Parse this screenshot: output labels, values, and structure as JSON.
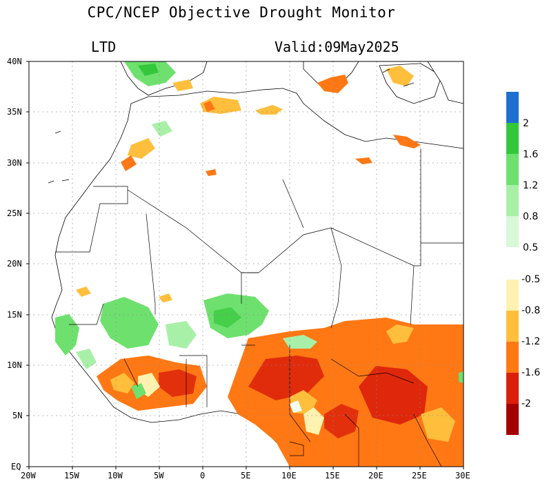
{
  "header": {
    "title": "CPC/NCEP Objective Drought Monitor",
    "index_label": "LTD",
    "valid_label": "Valid:09May2025"
  },
  "map": {
    "lat_ticks": [
      "EQ",
      "5N",
      "10N",
      "15N",
      "20N",
      "25N",
      "30N",
      "35N",
      "40N"
    ],
    "lon_ticks": [
      "20W",
      "15W",
      "10W",
      "5W",
      "0",
      "5E",
      "10E",
      "15E",
      "20E",
      "25E",
      "30E"
    ]
  },
  "legend": {
    "wet": {
      "colors": [
        "#1e6fd2",
        "#33c83c",
        "#6ee06e",
        "#a8f0a8",
        "#d8f8d8",
        "#f0fcf0"
      ],
      "labels": [
        "2",
        "1.6",
        "1.2",
        "0.8",
        "0.5"
      ]
    },
    "dry": {
      "colors": [
        "#fff2b0",
        "#ffbf3c",
        "#ff7814",
        "#dc1e0a",
        "#a50000"
      ],
      "labels": [
        "-0.5",
        "-0.8",
        "-1.2",
        "-1.6",
        "-2"
      ]
    }
  }
}
